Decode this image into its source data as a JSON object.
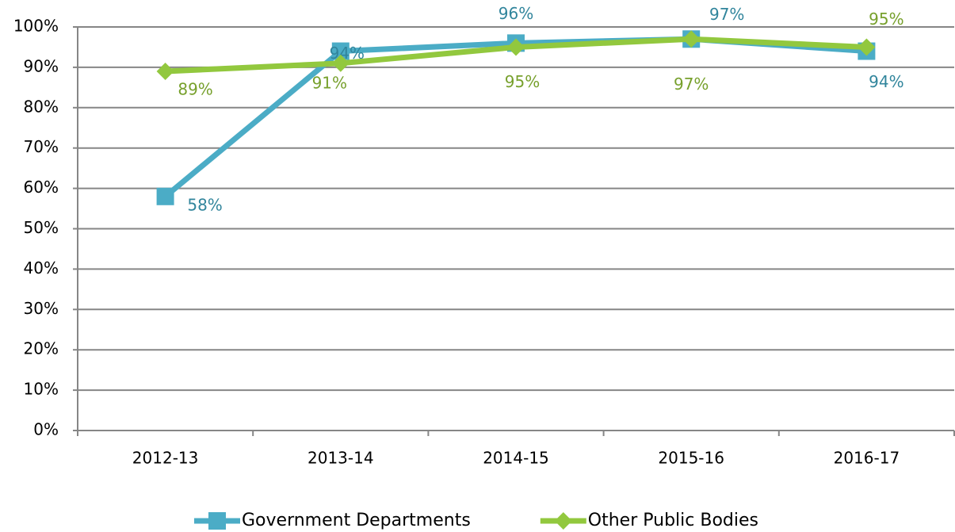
{
  "chart_data": {
    "type": "line",
    "categories": [
      "2012-13",
      "2013-14",
      "2014-15",
      "2015-16",
      "2016-17"
    ],
    "series": [
      {
        "name": "Government Departments",
        "color": "#4bacc6",
        "label_color": "#31859c",
        "marker": "square",
        "values": [
          58,
          94,
          96,
          97,
          94
        ],
        "value_labels": [
          "58%",
          "94%",
          "96%",
          "97%",
          "94%"
        ]
      },
      {
        "name": "Other Public Bodies",
        "color": "#92c83e",
        "label_color": "#77a02c",
        "marker": "diamond",
        "values": [
          89,
          91,
          95,
          97,
          95
        ],
        "value_labels": [
          "89%",
          "91%",
          "95%",
          "97%",
          "95%"
        ]
      }
    ],
    "ylim": [
      0,
      100
    ],
    "yticks": [
      {
        "value": 0,
        "label": "0%"
      },
      {
        "value": 10,
        "label": "10%"
      },
      {
        "value": 20,
        "label": "20%"
      },
      {
        "value": 30,
        "label": "30%"
      },
      {
        "value": 40,
        "label": "40%"
      },
      {
        "value": 50,
        "label": "50%"
      },
      {
        "value": 60,
        "label": "60%"
      },
      {
        "value": 70,
        "label": "70%"
      },
      {
        "value": 80,
        "label": "80%"
      },
      {
        "value": 90,
        "label": "90%"
      },
      {
        "value": 100,
        "label": "100%"
      }
    ],
    "grid": true,
    "legend": "bottom"
  }
}
